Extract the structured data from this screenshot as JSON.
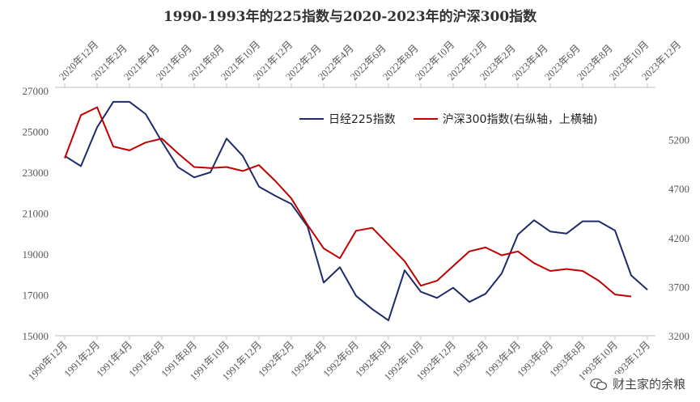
{
  "title": "1990-1993年的225指数与2020-2023年的沪深300指数",
  "watermark": "财主家的余粮",
  "colors": {
    "nikkei": "#1f2a6b",
    "csi300": "#c00000",
    "axis": "#bfbfbf",
    "tick_text": "#595959"
  },
  "chart_data": {
    "type": "line",
    "title": "1990-1993年的225指数与2020-2023年的沪深300指数",
    "grid": false,
    "legend_position": "top-right",
    "x_bottom_labels": [
      "1990年12月",
      "1991年2月",
      "1991年4月",
      "1991年6月",
      "1991年8月",
      "1991年10月",
      "1991年12月",
      "1992年2月",
      "1992年4月",
      "1992年6月",
      "1992年8月",
      "1992年10月",
      "1992年12月",
      "1993年2月",
      "1993年4月",
      "1993年6月",
      "1993年8月",
      "1993年10月",
      "1993年12月"
    ],
    "x_top_labels": [
      "2020年12月",
      "2021年2月",
      "2021年4月",
      "2021年6月",
      "2021年8月",
      "2021年10月",
      "2021年12月",
      "2022年2月",
      "2022年4月",
      "2022年6月",
      "2022年8月",
      "2022年10月",
      "2022年12月",
      "2023年2月",
      "2023年4月",
      "2023年6月",
      "2023年8月",
      "2023年10月",
      "2023年12月"
    ],
    "y_left_ticks": [
      15000,
      17000,
      19000,
      21000,
      23000,
      25000,
      27000
    ],
    "y_left_range": [
      15000,
      27000
    ],
    "y_right_ticks": [
      3200,
      3700,
      4200,
      4700,
      5200
    ],
    "y_right_range": [
      3200,
      5700
    ],
    "series": [
      {
        "name": "日经225指数",
        "axis": "left",
        "values": [
          23800,
          23300,
          25200,
          26450,
          26450,
          25850,
          24500,
          23250,
          22750,
          23000,
          24650,
          23800,
          22300,
          21850,
          21450,
          20350,
          17600,
          18350,
          16950,
          16300,
          15750,
          18200,
          17150,
          16850,
          17350,
          16650,
          17050,
          18050,
          19950,
          20650,
          20100,
          20000,
          20600,
          20600,
          20150,
          17950,
          17250
        ]
      },
      {
        "name": "沪深300指数(右纵轴，上横轴)",
        "axis": "right",
        "values": [
          5010,
          5450,
          5530,
          5130,
          5090,
          5170,
          5210,
          5060,
          4920,
          4910,
          4920,
          4880,
          4940,
          4780,
          4600,
          4330,
          4090,
          3990,
          4270,
          4300,
          4130,
          3960,
          3710,
          3760,
          3910,
          4060,
          4100,
          4020,
          4060,
          3940,
          3860,
          3880,
          3860,
          3760,
          3620,
          3600
        ]
      }
    ]
  }
}
